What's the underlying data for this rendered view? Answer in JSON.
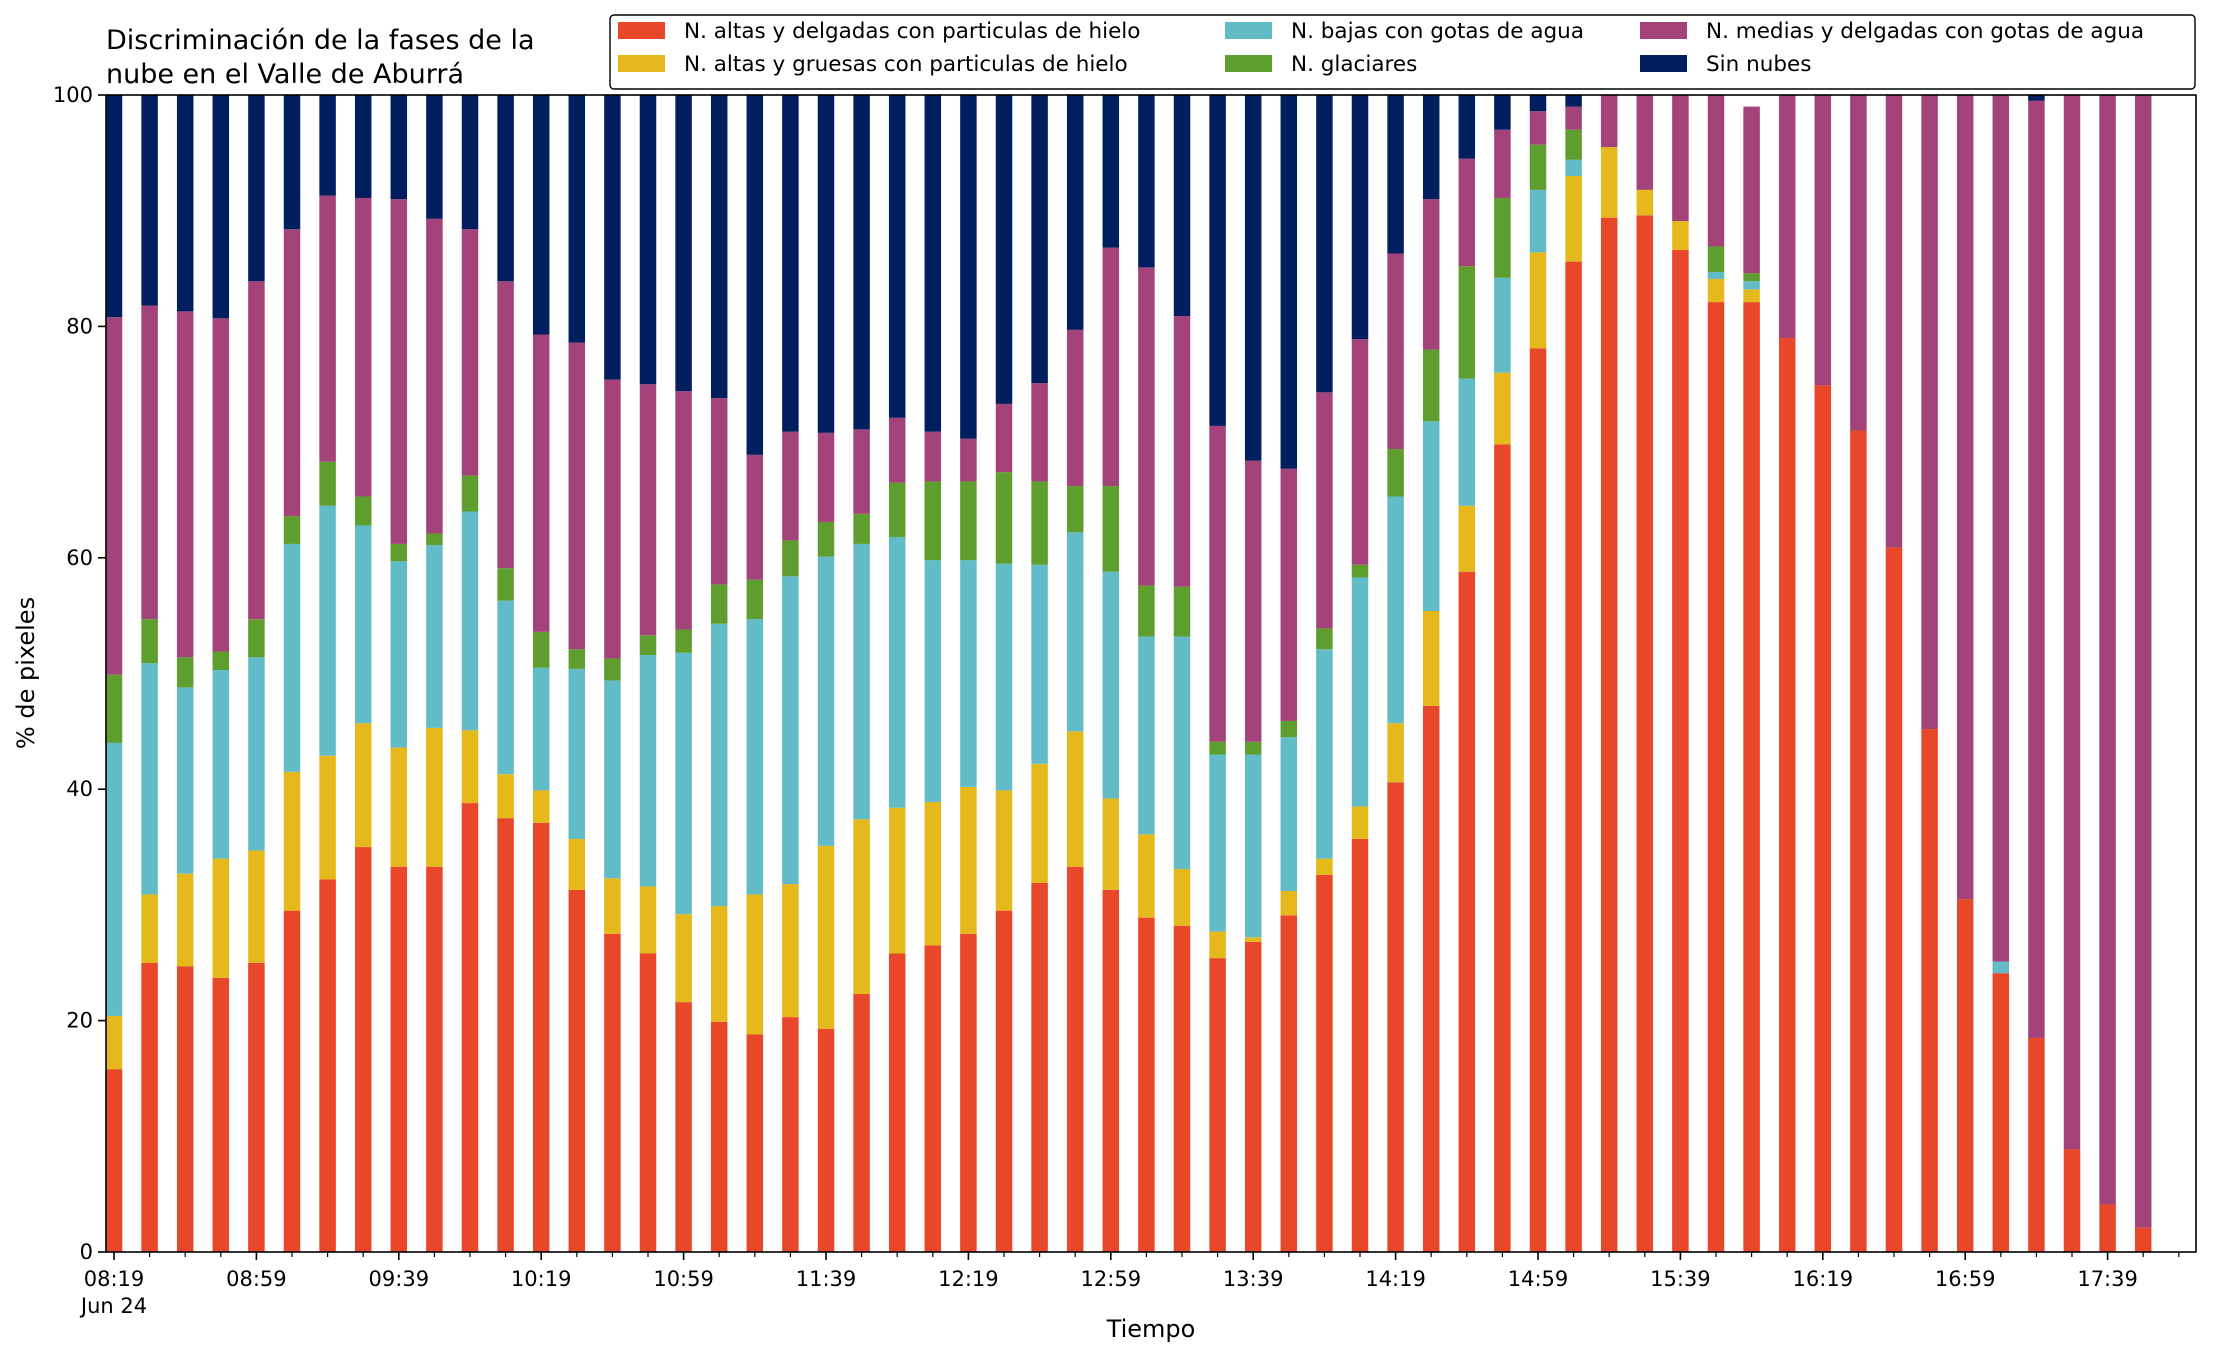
{
  "chart_data": {
    "type": "bar",
    "stacked": true,
    "title_lines": [
      "Discriminación de la fases de la",
      "nube en el Valle de Aburrá"
    ],
    "xlabel": "Tiempo",
    "ylabel": "% de pixeles",
    "ylim": [
      0,
      100
    ],
    "yticks": [
      0,
      20,
      40,
      60,
      80,
      100
    ],
    "xtick_labels": [
      "08:19",
      "08:59",
      "09:39",
      "10:19",
      "10:59",
      "11:39",
      "12:19",
      "12:59",
      "13:39",
      "14:19",
      "14:59",
      "15:39",
      "16:19",
      "16:59",
      "17:39"
    ],
    "xtick_sublabel": "Jun 24",
    "legend_position": "top-right",
    "categories": [
      "08:19",
      "08:29",
      "08:39",
      "08:49",
      "08:59",
      "09:09",
      "09:19",
      "09:29",
      "09:39",
      "09:49",
      "09:59",
      "10:09",
      "10:19",
      "10:29",
      "10:39",
      "10:49",
      "10:59",
      "11:09",
      "11:19",
      "11:29",
      "11:39",
      "11:49",
      "11:59",
      "12:09",
      "12:19",
      "12:29",
      "12:39",
      "12:49",
      "12:59",
      "13:09",
      "13:19",
      "13:29",
      "13:39",
      "13:49",
      "13:59",
      "14:09",
      "14:19",
      "14:29",
      "14:39",
      "14:49",
      "14:59",
      "15:09",
      "15:19",
      "15:29",
      "15:39",
      "15:49",
      "15:59",
      "16:09",
      "16:19",
      "16:29",
      "16:39",
      "16:49",
      "16:59",
      "17:09",
      "17:19",
      "17:29",
      "17:39",
      "17:49"
    ],
    "series": [
      {
        "name": "N. altas y delgadas con particulas de hielo",
        "color": "#e8472a",
        "values": [
          15.8,
          25.0,
          24.7,
          23.7,
          25.0,
          29.5,
          32.2,
          35.0,
          33.3,
          33.3,
          38.8,
          37.5,
          37.1,
          31.3,
          27.5,
          25.8,
          21.6,
          19.9,
          18.8,
          20.3,
          19.3,
          22.3,
          25.8,
          26.5,
          27.5,
          29.5,
          31.9,
          33.3,
          31.3,
          28.9,
          28.2,
          25.4,
          26.8,
          29.1,
          32.6,
          35.7,
          40.6,
          47.2,
          58.8,
          69.8,
          78.1,
          85.6,
          89.4,
          89.6,
          86.6,
          82.1,
          82.1,
          79.0,
          74.9,
          71.0,
          60.9,
          45.2,
          30.5,
          24.1,
          18.5,
          8.9,
          4.1,
          2.1
        ]
      },
      {
        "name": "N. altas y gruesas con particulas de hielo",
        "color": "#e5b81c",
        "values": [
          4.6,
          5.9,
          8.0,
          10.3,
          9.7,
          12.0,
          10.7,
          10.7,
          10.3,
          12.0,
          6.3,
          3.8,
          2.8,
          4.4,
          4.8,
          5.8,
          7.6,
          10.0,
          12.1,
          11.5,
          15.8,
          15.1,
          12.6,
          12.4,
          12.7,
          10.4,
          10.3,
          11.7,
          7.9,
          7.2,
          4.9,
          2.3,
          0.4,
          2.1,
          1.4,
          2.8,
          5.1,
          8.2,
          5.7,
          6.2,
          8.3,
          7.4,
          6.1,
          2.2,
          2.5,
          2.0,
          1.1,
          0,
          0,
          0,
          0,
          0,
          0,
          0,
          0,
          0,
          0,
          0
        ]
      },
      {
        "name": "N. bajas con gotas de agua",
        "color": "#62bcc8",
        "values": [
          23.6,
          20.0,
          16.1,
          16.3,
          16.7,
          19.7,
          21.6,
          17.1,
          16.1,
          15.8,
          18.9,
          15.0,
          10.6,
          14.7,
          17.1,
          20.0,
          22.6,
          24.4,
          23.8,
          26.6,
          25.0,
          23.8,
          23.4,
          20.9,
          19.6,
          19.6,
          17.2,
          17.2,
          19.6,
          17.1,
          20.1,
          15.3,
          15.8,
          13.3,
          18.1,
          19.8,
          19.6,
          16.4,
          11.0,
          8.2,
          5.4,
          1.4,
          0,
          0,
          0,
          0.6,
          0.7,
          0,
          0,
          0,
          0,
          0,
          0,
          1.0,
          0,
          0,
          0,
          0
        ]
      },
      {
        "name": "N. glaciares",
        "color": "#5d9e2e",
        "values": [
          5.9,
          3.8,
          2.6,
          1.6,
          3.3,
          2.4,
          3.8,
          2.5,
          1.5,
          1.0,
          3.1,
          2.8,
          3.1,
          1.7,
          1.9,
          1.7,
          2.0,
          3.4,
          3.4,
          3.1,
          3.0,
          2.6,
          4.7,
          6.8,
          6.8,
          7.9,
          7.2,
          4.0,
          7.4,
          4.4,
          4.3,
          1.1,
          1.1,
          1.4,
          1.8,
          1.1,
          4.1,
          6.2,
          9.7,
          6.9,
          3.9,
          2.6,
          0,
          0,
          0,
          2.2,
          0.7,
          0,
          0,
          0,
          0,
          0,
          0,
          0,
          0,
          0,
          0,
          0
        ]
      },
      {
        "name": "N. medias y delgadas con gotas de agua",
        "color": "#a3437a",
        "values": [
          30.9,
          27.1,
          29.9,
          28.8,
          29.2,
          24.8,
          23.0,
          25.8,
          29.8,
          27.2,
          21.3,
          24.8,
          25.7,
          26.5,
          24.1,
          21.7,
          20.6,
          16.1,
          10.8,
          9.4,
          7.7,
          7.3,
          5.6,
          4.3,
          3.7,
          5.9,
          8.5,
          13.5,
          20.6,
          27.5,
          23.4,
          27.3,
          24.3,
          21.8,
          20.4,
          19.5,
          16.9,
          13.0,
          9.3,
          5.9,
          2.9,
          2.0,
          4.5,
          8.2,
          10.9,
          13.1,
          14.4,
          21.0,
          25.1,
          29.0,
          39.1,
          54.8,
          69.5,
          74.9,
          81.0,
          91.1,
          95.9,
          97.9
        ]
      },
      {
        "name": "Sin nubes",
        "color": "#011f5e",
        "values": [
          19.2,
          18.2,
          18.7,
          19.3,
          16.1,
          11.6,
          8.7,
          8.9,
          9.0,
          10.7,
          11.6,
          16.1,
          20.7,
          21.4,
          24.6,
          25.0,
          25.6,
          26.2,
          31.1,
          29.1,
          29.2,
          28.9,
          27.9,
          29.1,
          29.7,
          26.7,
          24.9,
          20.3,
          13.2,
          14.9,
          19.1,
          28.6,
          31.6,
          32.3,
          25.7,
          21.1,
          13.7,
          9.0,
          5.5,
          3.0,
          1.4,
          1.0,
          0,
          0,
          0,
          0,
          0,
          0,
          0,
          0,
          0,
          0,
          0,
          0,
          0.5,
          0,
          0,
          0
        ]
      }
    ]
  }
}
